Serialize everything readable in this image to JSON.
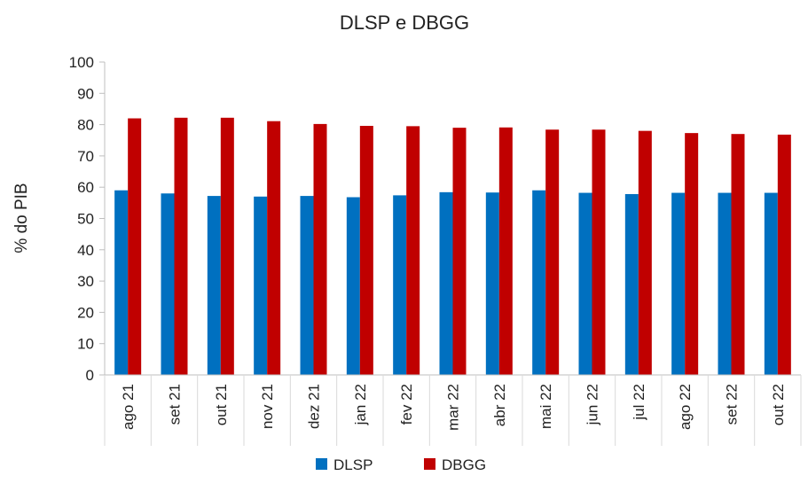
{
  "chart_data": {
    "type": "bar",
    "title": "DLSP e DBGG",
    "xlabel": "",
    "ylabel": "% do PIB",
    "ylim": [
      0,
      100
    ],
    "yticks": [
      0,
      10,
      20,
      30,
      40,
      50,
      60,
      70,
      80,
      90,
      100
    ],
    "grid": false,
    "legend_position": "bottom",
    "categories": [
      "ago 21",
      "set 21",
      "out 21",
      "nov 21",
      "dez 21",
      "jan 22",
      "fev 22",
      "mar 22",
      "abr 22",
      "mai 22",
      "jun 22",
      "jul 22",
      "ago 22",
      "set 22",
      "out 22"
    ],
    "series": [
      {
        "name": "DLSP",
        "color": "#0070C0",
        "values": [
          59.0,
          58.0,
          57.2,
          57.0,
          57.2,
          56.8,
          57.4,
          58.4,
          58.3,
          59.0,
          58.2,
          57.8,
          58.2,
          58.2,
          58.2
        ]
      },
      {
        "name": "DBGG",
        "color": "#C00000",
        "values": [
          82.0,
          82.2,
          82.2,
          81.1,
          80.2,
          79.6,
          79.5,
          79.0,
          79.1,
          78.4,
          78.4,
          78.0,
          77.3,
          77.0,
          76.8
        ]
      }
    ]
  }
}
